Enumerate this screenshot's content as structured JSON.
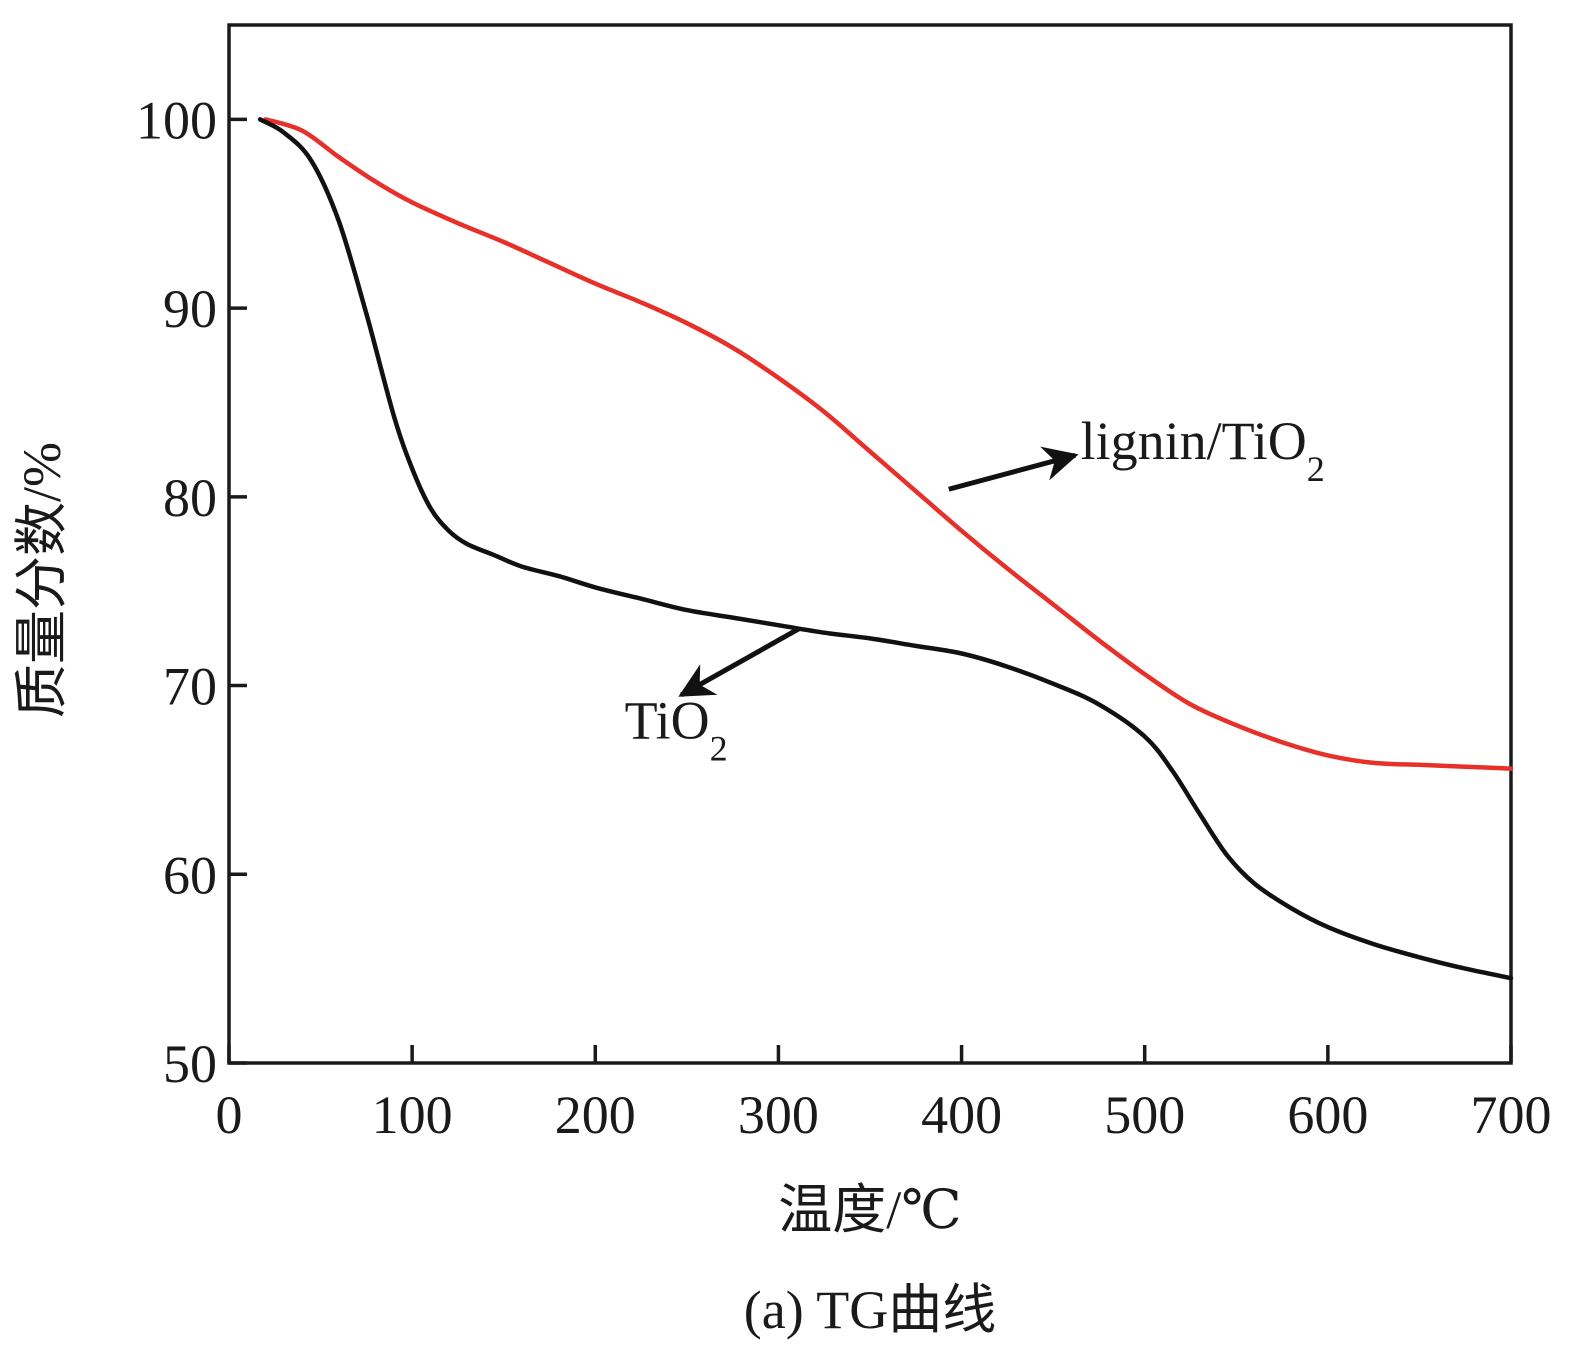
{
  "chart_data": {
    "type": "line",
    "caption": "(a) TG曲线",
    "xlabel": "温度/℃",
    "ylabel": "质量分数/%",
    "xlim": [
      0,
      700
    ],
    "ylim": [
      50,
      105
    ],
    "x_ticks": [
      0,
      100,
      200,
      300,
      400,
      500,
      600,
      700
    ],
    "y_ticks": [
      50,
      60,
      70,
      80,
      90,
      100
    ],
    "grid": false,
    "legend": "none",
    "series": [
      {
        "name": "lignin/TiO2",
        "label_main": "lignin/TiO",
        "label_sub": "2",
        "color": "#e8302a",
        "x": [
          20,
          40,
          60,
          80,
          100,
          125,
          150,
          175,
          200,
          225,
          250,
          275,
          300,
          325,
          350,
          375,
          400,
          425,
          450,
          475,
          500,
          525,
          550,
          575,
          600,
          625,
          650,
          675,
          700
        ],
        "y": [
          100.0,
          99.4,
          98.0,
          96.7,
          95.6,
          94.5,
          93.5,
          92.4,
          91.3,
          90.3,
          89.2,
          87.9,
          86.3,
          84.5,
          82.4,
          80.3,
          78.2,
          76.2,
          74.3,
          72.4,
          70.6,
          69.0,
          67.9,
          67.0,
          66.3,
          65.9,
          65.8,
          65.7,
          65.6
        ]
      },
      {
        "name": "TiO2",
        "label_main": "TiO",
        "label_sub": "2",
        "color": "#111111",
        "x": [
          17,
          30,
          45,
          60,
          75,
          90,
          100,
          110,
          120,
          130,
          145,
          160,
          180,
          200,
          225,
          250,
          275,
          300,
          325,
          350,
          375,
          400,
          425,
          450,
          475,
          500,
          515,
          530,
          545,
          560,
          580,
          600,
          625,
          650,
          675,
          700
        ],
        "y": [
          100.0,
          99.3,
          97.8,
          94.6,
          89.7,
          84.3,
          81.5,
          79.4,
          78.2,
          77.5,
          76.9,
          76.3,
          75.8,
          75.2,
          74.6,
          74.0,
          73.6,
          73.2,
          72.8,
          72.5,
          72.1,
          71.7,
          71.0,
          70.1,
          69.0,
          67.3,
          65.5,
          63.2,
          61.0,
          59.5,
          58.2,
          57.2,
          56.3,
          55.6,
          55.0,
          54.5
        ]
      }
    ],
    "annotations": [
      {
        "series": "lignin/TiO2",
        "arrow_from": [
          393,
          80.4
        ],
        "arrow_to": [
          462,
          82.2
        ],
        "text_at": [
          465,
          82.0
        ]
      },
      {
        "series": "TiO2",
        "arrow_from": [
          311,
          73.0
        ],
        "arrow_to": [
          247,
          69.5
        ],
        "text_at": [
          216,
          67.2
        ]
      }
    ]
  }
}
